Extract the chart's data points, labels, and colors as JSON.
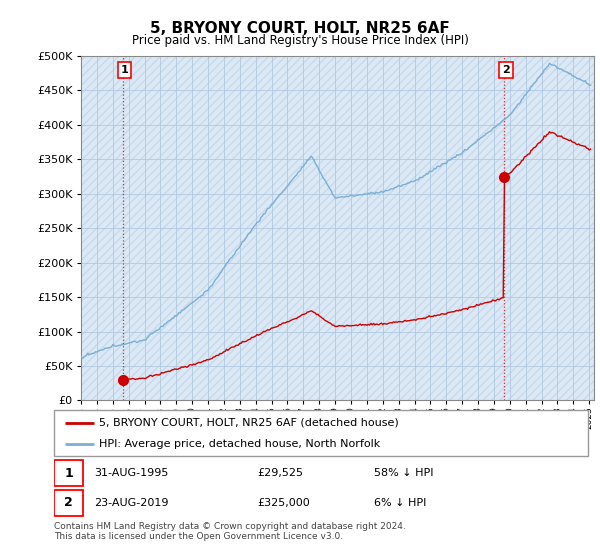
{
  "title": "5, BRYONY COURT, HOLT, NR25 6AF",
  "subtitle": "Price paid vs. HM Land Registry's House Price Index (HPI)",
  "legend_line1": "5, BRYONY COURT, HOLT, NR25 6AF (detached house)",
  "legend_line2": "HPI: Average price, detached house, North Norfolk",
  "annotation1_label": "1",
  "annotation1_date": "31-AUG-1995",
  "annotation1_price": "£29,525",
  "annotation1_hpi": "58% ↓ HPI",
  "annotation1_year": 1995.65,
  "annotation1_value": 29525,
  "annotation2_label": "2",
  "annotation2_date": "23-AUG-2019",
  "annotation2_price": "£325,000",
  "annotation2_hpi": "6% ↓ HPI",
  "annotation2_year": 2019.65,
  "annotation2_value": 325000,
  "ylim": [
    0,
    500000
  ],
  "yticks": [
    0,
    50000,
    100000,
    150000,
    200000,
    250000,
    300000,
    350000,
    400000,
    450000,
    500000
  ],
  "xlim_start": 1993,
  "xlim_end": 2025.3,
  "footer": "Contains HM Land Registry data © Crown copyright and database right 2024.\nThis data is licensed under the Open Government Licence v3.0.",
  "property_color": "#cc0000",
  "hpi_color": "#7aafd4",
  "background_color": "#dce9f5",
  "hatch_color": "#c5d9ee",
  "grid_color": "#b0c8e0"
}
